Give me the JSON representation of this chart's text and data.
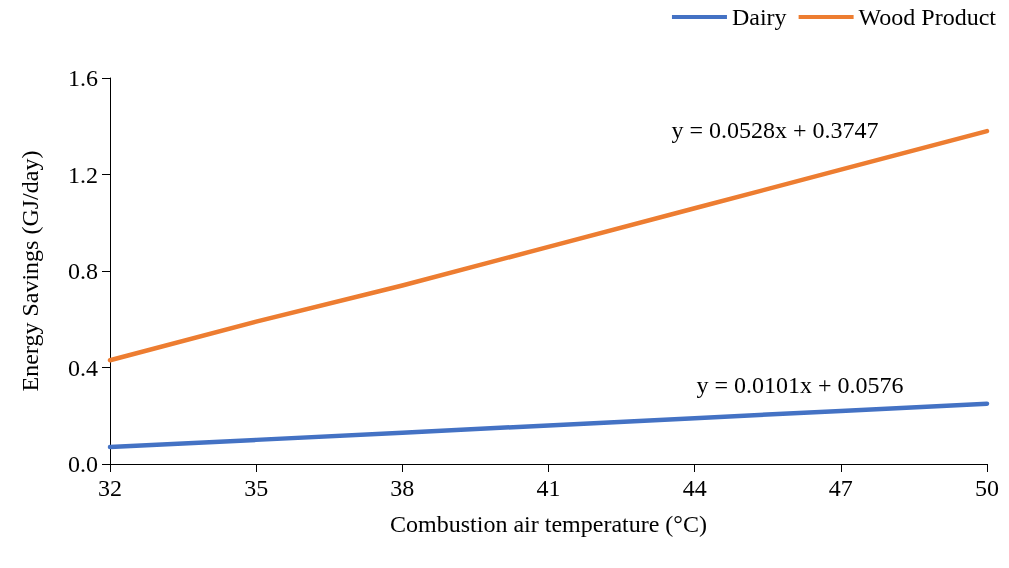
{
  "chart_data": {
    "type": "line",
    "xlabel": "Combustion air temperature (°C)",
    "ylabel": "Energy Savings (GJ/day)",
    "x": [
      32,
      35,
      38,
      41,
      44,
      47,
      50
    ],
    "series": [
      {
        "name": "Dairy",
        "color": "#4472c4",
        "values": [
          0.07,
          0.1,
          0.13,
          0.16,
          0.19,
          0.22,
          0.25
        ]
      },
      {
        "name": "Wood Product",
        "color": "#ed7d31",
        "values": [
          0.43,
          0.59,
          0.74,
          0.9,
          1.06,
          1.22,
          1.38
        ]
      }
    ],
    "xlim": [
      32,
      50
    ],
    "xticks": [
      32,
      35,
      38,
      41,
      44,
      47,
      50
    ],
    "ylim": [
      0,
      1.6
    ],
    "yticks": [
      {
        "value": 0,
        "label": "0.0"
      },
      0.4,
      0.8,
      1.2,
      1.6
    ],
    "annotations": [
      "y = 0.0101x + 0.0576",
      "y = 0.0528x + 0.3747"
    ],
    "grid": false,
    "legend": "top right",
    "marker": "none",
    "line_style": "solid"
  }
}
